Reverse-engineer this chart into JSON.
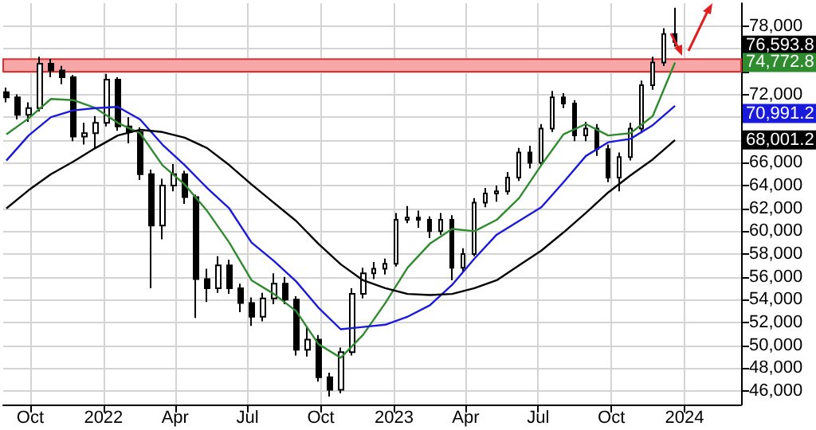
{
  "chart_data": {
    "type": "candlestick",
    "color": "#000000",
    "grid": true,
    "xlim": [
      "2021-08-28",
      "2024-03-12"
    ],
    "xticks": [
      {
        "value": "2021-10-01",
        "label": "Oct"
      },
      {
        "value": "2022-01-01",
        "label": "2022"
      },
      {
        "value": "2022-04-01",
        "label": "Apr"
      },
      {
        "value": "2022-07-01",
        "label": "Jul"
      },
      {
        "value": "2022-10-01",
        "label": "Oct"
      },
      {
        "value": "2023-01-01",
        "label": "2023"
      },
      {
        "value": "2023-04-01",
        "label": "Apr"
      },
      {
        "value": "2023-07-01",
        "label": "Jul"
      },
      {
        "value": "2023-10-01",
        "label": "Oct"
      },
      {
        "value": "2024-01-01",
        "label": "2024"
      }
    ],
    "ylim": [
      44800,
      80000
    ],
    "yticks": [
      {
        "value": 46000,
        "label": "46,000"
      },
      {
        "value": 48000,
        "label": "48,000"
      },
      {
        "value": 50000,
        "label": "50,000"
      },
      {
        "value": 52000,
        "label": "52,000"
      },
      {
        "value": 54000,
        "label": "54,000"
      },
      {
        "value": 56000,
        "label": "56,000"
      },
      {
        "value": 58000,
        "label": "58,000"
      },
      {
        "value": 60000,
        "label": "60,000"
      },
      {
        "value": 62000,
        "label": "62,000"
      },
      {
        "value": 64000,
        "label": "64,000"
      },
      {
        "value": 66000,
        "label": "66,000"
      },
      {
        "value": 68000,
        "label": null
      },
      {
        "value": 70000,
        "label": null
      },
      {
        "value": 72000,
        "label": "72,000"
      },
      {
        "value": 74000,
        "label": null
      },
      {
        "value": 76000,
        "label": null
      },
      {
        "value": 78000,
        "label": "78,000"
      }
    ],
    "x": [
      "2021-09-01",
      "2021-09-15",
      "2021-09-29",
      "2021-10-13",
      "2021-10-27",
      "2021-11-10",
      "2021-11-24",
      "2021-12-08",
      "2021-12-22",
      "2022-01-05",
      "2022-01-19",
      "2022-02-02",
      "2022-02-16",
      "2022-03-02",
      "2022-03-16",
      "2022-03-30",
      "2022-04-13",
      "2022-04-27",
      "2022-05-11",
      "2022-05-25",
      "2022-06-08",
      "2022-06-22",
      "2022-07-06",
      "2022-07-20",
      "2022-08-03",
      "2022-08-17",
      "2022-08-31",
      "2022-09-14",
      "2022-09-28",
      "2022-10-12",
      "2022-10-26",
      "2022-11-09",
      "2022-11-23",
      "2022-12-07",
      "2022-12-21",
      "2023-01-04",
      "2023-01-18",
      "2023-02-01",
      "2023-02-15",
      "2023-03-01",
      "2023-03-15",
      "2023-03-29",
      "2023-04-12",
      "2023-04-26",
      "2023-05-10",
      "2023-05-24",
      "2023-06-07",
      "2023-06-21",
      "2023-07-05",
      "2023-07-19",
      "2023-08-02",
      "2023-08-16",
      "2023-08-30",
      "2023-09-13",
      "2023-09-27",
      "2023-10-11",
      "2023-10-25",
      "2023-11-08",
      "2023-11-22",
      "2023-12-06",
      "2023-12-20"
    ],
    "ohlc": [
      [
        72200,
        72600,
        71300,
        71750
      ],
      [
        71750,
        72000,
        69800,
        70200
      ],
      [
        70200,
        71300,
        69600,
        70800
      ],
      [
        70800,
        75300,
        70500,
        74700
      ],
      [
        74700,
        75100,
        73500,
        74100
      ],
      [
        74100,
        74500,
        72900,
        73500
      ],
      [
        73500,
        73700,
        67900,
        68300
      ],
      [
        68300,
        69500,
        67600,
        68600
      ],
      [
        68600,
        70100,
        67200,
        69500
      ],
      [
        69500,
        73800,
        69200,
        73300
      ],
      [
        73300,
        73500,
        68800,
        69200
      ],
      [
        69200,
        70000,
        67700,
        68700
      ],
      [
        68700,
        69100,
        64500,
        65000
      ],
      [
        65000,
        65400,
        55000,
        60500
      ],
      [
        60500,
        64600,
        59300,
        64000
      ],
      [
        64000,
        65900,
        63500,
        65000
      ],
      [
        65000,
        65300,
        62400,
        63000
      ],
      [
        63000,
        63200,
        52400,
        55800
      ],
      [
        55800,
        56700,
        53800,
        55000
      ],
      [
        55000,
        57800,
        54600,
        57000
      ],
      [
        57000,
        57500,
        54500,
        55000
      ],
      [
        55000,
        55400,
        52900,
        53700
      ],
      [
        53700,
        54200,
        51700,
        52500
      ],
      [
        52500,
        54600,
        52100,
        54100
      ],
      [
        54100,
        56300,
        53600,
        55400
      ],
      [
        55400,
        56000,
        53600,
        54000
      ],
      [
        54000,
        54300,
        49100,
        49600
      ],
      [
        49600,
        51600,
        49000,
        50500
      ],
      [
        50500,
        50900,
        46800,
        47200
      ],
      [
        47200,
        47600,
        45500,
        46100
      ],
      [
        46100,
        49800,
        45800,
        49400
      ],
      [
        49400,
        55000,
        49100,
        54500
      ],
      [
        54500,
        56800,
        54100,
        56300
      ],
      [
        56300,
        57300,
        55800,
        56700
      ],
      [
        56700,
        57600,
        56200,
        57150
      ],
      [
        57150,
        61600,
        56900,
        61000
      ],
      [
        61000,
        62200,
        60700,
        61200
      ],
      [
        61200,
        61800,
        60300,
        61000
      ],
      [
        61000,
        61300,
        59400,
        60000
      ],
      [
        60000,
        61600,
        59700,
        61000
      ],
      [
        61000,
        61400,
        55700,
        56800
      ],
      [
        56800,
        58500,
        56400,
        58000
      ],
      [
        58000,
        62900,
        57800,
        62500
      ],
      [
        62500,
        63800,
        62100,
        63300
      ],
      [
        63300,
        64000,
        62600,
        63500
      ],
      [
        63500,
        65200,
        63200,
        64700
      ],
      [
        64700,
        67300,
        64400,
        66900
      ],
      [
        66900,
        67500,
        65500,
        66000
      ],
      [
        66000,
        69400,
        65700,
        69000
      ],
      [
        69000,
        72300,
        68700,
        71750
      ],
      [
        71750,
        72100,
        70800,
        71200
      ],
      [
        71200,
        71500,
        67900,
        68400
      ],
      [
        68400,
        69600,
        67900,
        69000
      ],
      [
        69000,
        69400,
        66600,
        67200
      ],
      [
        67200,
        67600,
        64300,
        64700
      ],
      [
        64700,
        66900,
        63500,
        66500
      ],
      [
        66500,
        69500,
        66200,
        69000
      ],
      [
        69000,
        73200,
        68600,
        72800
      ],
      [
        72800,
        75300,
        72400,
        74800
      ],
      [
        74800,
        77800,
        74500,
        77300
      ],
      [
        77300,
        79600,
        76200,
        76593.8
      ]
    ],
    "series": [
      {
        "type": "line",
        "color": "#2e8b2e",
        "x": [
          "2021-09-01",
          "2021-09-29",
          "2021-10-27",
          "2021-11-24",
          "2021-12-22",
          "2022-01-19",
          "2022-02-16",
          "2022-03-16",
          "2022-04-13",
          "2022-05-11",
          "2022-06-08",
          "2022-07-06",
          "2022-08-03",
          "2022-08-31",
          "2022-09-28",
          "2022-10-26",
          "2022-11-23",
          "2022-12-21",
          "2023-01-18",
          "2023-02-15",
          "2023-03-15",
          "2023-04-12",
          "2023-05-10",
          "2023-06-07",
          "2023-07-05",
          "2023-08-02",
          "2023-08-30",
          "2023-09-27",
          "2023-10-25",
          "2023-11-22",
          "2023-12-20"
        ],
        "values": [
          68500,
          69900,
          71600,
          71500,
          70800,
          69500,
          68600,
          65800,
          64100,
          61800,
          59000,
          55700,
          54500,
          53000,
          50100,
          48900,
          50900,
          53700,
          56800,
          58900,
          60200,
          60000,
          61000,
          62900,
          65800,
          68500,
          69400,
          68400,
          68600,
          70100,
          74800
        ]
      },
      {
        "type": "line",
        "color": "#1a1adc",
        "x": [
          "2021-09-01",
          "2021-09-29",
          "2021-10-27",
          "2021-11-24",
          "2021-12-22",
          "2022-01-19",
          "2022-02-16",
          "2022-03-16",
          "2022-04-13",
          "2022-05-11",
          "2022-06-08",
          "2022-07-06",
          "2022-08-03",
          "2022-08-31",
          "2022-09-28",
          "2022-10-26",
          "2022-11-23",
          "2022-12-21",
          "2023-01-18",
          "2023-02-15",
          "2023-03-15",
          "2023-04-12",
          "2023-05-10",
          "2023-06-07",
          "2023-07-05",
          "2023-08-02",
          "2023-08-30",
          "2023-09-27",
          "2023-10-25",
          "2023-11-22",
          "2023-12-20"
        ],
        "values": [
          66200,
          68400,
          70000,
          70600,
          70800,
          70900,
          69800,
          67600,
          65800,
          63800,
          62000,
          59000,
          57400,
          55600,
          53300,
          51400,
          51600,
          51800,
          52500,
          53500,
          55300,
          57600,
          59700,
          60900,
          62100,
          64300,
          66600,
          67800,
          68100,
          69300,
          71000
        ]
      },
      {
        "type": "line",
        "color": "#000000",
        "x": [
          "2021-09-01",
          "2021-09-29",
          "2021-10-27",
          "2021-11-24",
          "2021-12-22",
          "2022-01-19",
          "2022-02-16",
          "2022-03-16",
          "2022-04-13",
          "2022-05-11",
          "2022-06-08",
          "2022-07-06",
          "2022-08-03",
          "2022-08-31",
          "2022-09-28",
          "2022-10-26",
          "2022-11-23",
          "2022-12-21",
          "2023-01-18",
          "2023-02-15",
          "2023-03-15",
          "2023-04-12",
          "2023-05-10",
          "2023-06-07",
          "2023-07-05",
          "2023-08-02",
          "2023-08-30",
          "2023-09-27",
          "2023-10-25",
          "2023-11-22",
          "2023-12-20"
        ],
        "values": [
          62000,
          63600,
          65000,
          66100,
          67300,
          68400,
          68900,
          68700,
          68200,
          67300,
          65800,
          64100,
          62500,
          60900,
          58900,
          57100,
          55700,
          55000,
          54500,
          54400,
          54500,
          55000,
          55700,
          57000,
          58300,
          59900,
          61600,
          63400,
          64900,
          66300,
          68000
        ]
      }
    ],
    "bands": [
      {
        "axis": "y",
        "from": 74000,
        "to": 75100,
        "color": "#f6a8a8"
      }
    ],
    "annotations": [
      "76,593.8",
      "74,772.8",
      "70,991.2",
      "68,001.2"
    ]
  }
}
